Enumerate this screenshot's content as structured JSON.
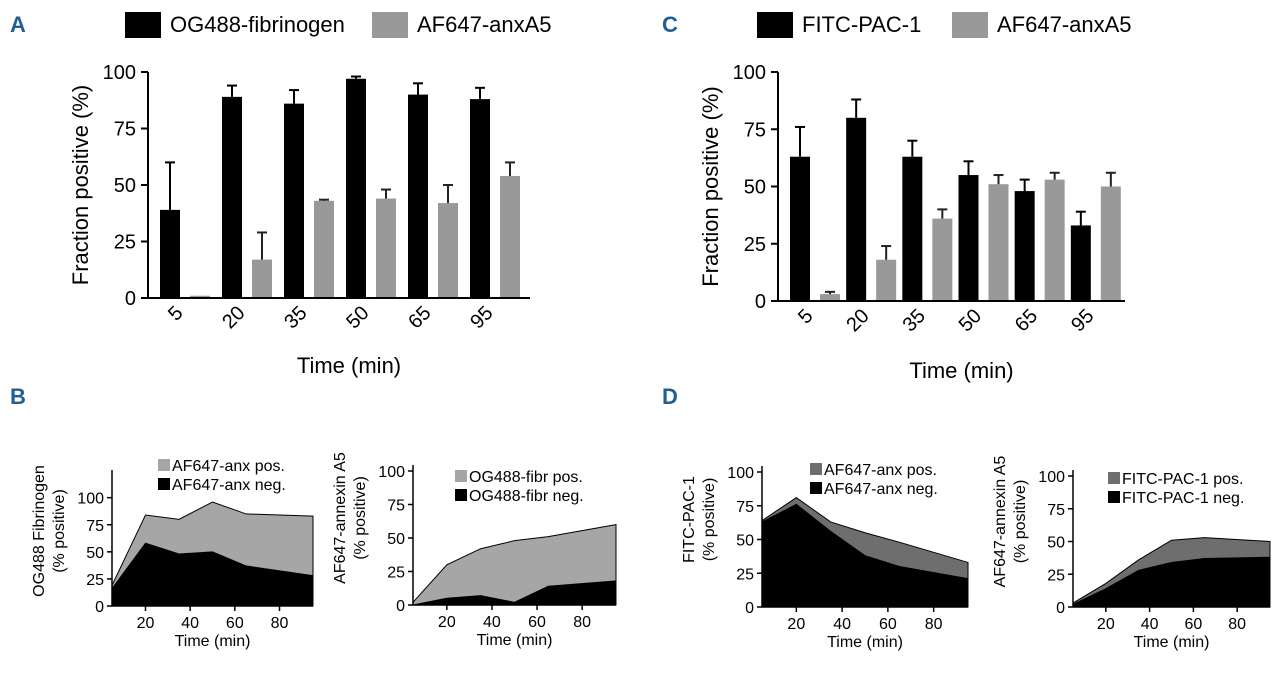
{
  "panel_labels": {
    "A": "A",
    "B": "B",
    "C": "C",
    "D": "D"
  },
  "colors": {
    "black": "#000000",
    "gray": "#999999",
    "gray_light": "#a6a6a6",
    "gray_dark": "#6e6e6e",
    "panel_letter": "#1f5f95"
  },
  "chart_data": [
    {
      "id": "A",
      "type": "bar",
      "title": "",
      "xlabel": "Time (min)",
      "ylabel": "Fraction positive (%)",
      "categories": [
        "5",
        "20",
        "35",
        "50",
        "65",
        "95"
      ],
      "ylim": [
        0,
        100
      ],
      "yticks": [
        "0",
        "25",
        "50",
        "75",
        "100"
      ],
      "series": [
        {
          "name": "OG488-fibrinogen",
          "values": [
            39,
            89,
            86,
            97,
            90,
            88
          ],
          "errors": [
            21,
            5,
            6,
            1,
            5,
            5
          ]
        },
        {
          "name": "AF647-anxA5",
          "values": [
            1,
            17,
            43,
            44,
            42,
            54
          ],
          "errors": [
            0,
            12,
            0.5,
            4,
            8,
            6
          ]
        }
      ]
    },
    {
      "id": "C",
      "type": "bar",
      "title": "",
      "xlabel": "Time (min)",
      "ylabel": "Fraction positive (%)",
      "categories": [
        "5",
        "20",
        "35",
        "50",
        "65",
        "95"
      ],
      "ylim": [
        0,
        100
      ],
      "yticks": [
        "0",
        "25",
        "50",
        "75",
        "100"
      ],
      "series": [
        {
          "name": "FITC-PAC-1",
          "values": [
            63,
            80,
            63,
            55,
            48,
            33
          ],
          "errors": [
            13,
            8,
            7,
            6,
            5,
            6
          ]
        },
        {
          "name": "AF647-anxA5",
          "values": [
            3,
            18,
            36,
            51,
            53,
            50
          ],
          "errors": [
            1,
            6,
            4,
            4,
            3,
            6
          ]
        }
      ]
    },
    {
      "id": "B1",
      "type": "area",
      "xlabel": "Time (min)",
      "ylabel": [
        "OG488 Fibrinogen",
        "(% positive)"
      ],
      "x": [
        5,
        20,
        35,
        50,
        65,
        95
      ],
      "xlim": [
        5,
        95
      ],
      "ylim": [
        0,
        120
      ],
      "xticks": [
        "20",
        "40",
        "60",
        "80"
      ],
      "yticks": [
        "0",
        "25",
        "50",
        "75",
        "100"
      ],
      "series": [
        {
          "name": "AF647-anx neg.",
          "values": [
            16,
            58,
            48,
            50,
            37,
            28
          ]
        },
        {
          "name": "AF647-anx pos.",
          "values": [
            19,
            84,
            80,
            96,
            85,
            83
          ]
        }
      ]
    },
    {
      "id": "B2",
      "type": "area",
      "xlabel": "Time (min)",
      "ylabel": [
        "AF647-annexin A5",
        "(% positive)"
      ],
      "x": [
        5,
        20,
        35,
        50,
        65,
        95
      ],
      "xlim": [
        5,
        95
      ],
      "ylim": [
        0,
        100
      ],
      "xticks": [
        "20",
        "40",
        "60",
        "80"
      ],
      "yticks": [
        "0",
        "25",
        "50",
        "75",
        "100"
      ],
      "series": [
        {
          "name": "OG488-fibr neg.",
          "values": [
            0,
            5,
            7,
            2,
            14,
            18
          ]
        },
        {
          "name": "OG488-fibr pos.",
          "values": [
            2,
            30,
            42,
            48,
            51,
            60
          ]
        }
      ]
    },
    {
      "id": "D1",
      "type": "area",
      "xlabel": "Time (min)",
      "ylabel": [
        "FITC-PAC-1",
        "(% positive)"
      ],
      "x": [
        5,
        20,
        35,
        50,
        65,
        95
      ],
      "xlim": [
        5,
        95
      ],
      "ylim": [
        0,
        100
      ],
      "xticks": [
        "20",
        "40",
        "60",
        "80"
      ],
      "yticks": [
        "0",
        "25",
        "50",
        "75",
        "100"
      ],
      "series": [
        {
          "name": "AF647-anx neg.",
          "values": [
            63,
            76,
            56,
            38,
            30,
            21
          ]
        },
        {
          "name": "AF647-anx pos.",
          "values": [
            64,
            81,
            63,
            55,
            48,
            33
          ]
        }
      ]
    },
    {
      "id": "D2",
      "type": "area",
      "xlabel": "Time (min)",
      "ylabel": [
        "AF647-annexin A5",
        "(% positive)"
      ],
      "x": [
        5,
        20,
        35,
        50,
        65,
        95
      ],
      "xlim": [
        5,
        95
      ],
      "ylim": [
        0,
        100
      ],
      "xticks": [
        "20",
        "40",
        "60",
        "80"
      ],
      "yticks": [
        "0",
        "25",
        "50",
        "75",
        "100"
      ],
      "series": [
        {
          "name": "FITC-PAC-1 neg.",
          "values": [
            2,
            14,
            28,
            34,
            37,
            38
          ]
        },
        {
          "name": "FITC-PAC-1 pos.",
          "values": [
            3,
            18,
            36,
            51,
            53,
            50
          ]
        }
      ]
    }
  ]
}
